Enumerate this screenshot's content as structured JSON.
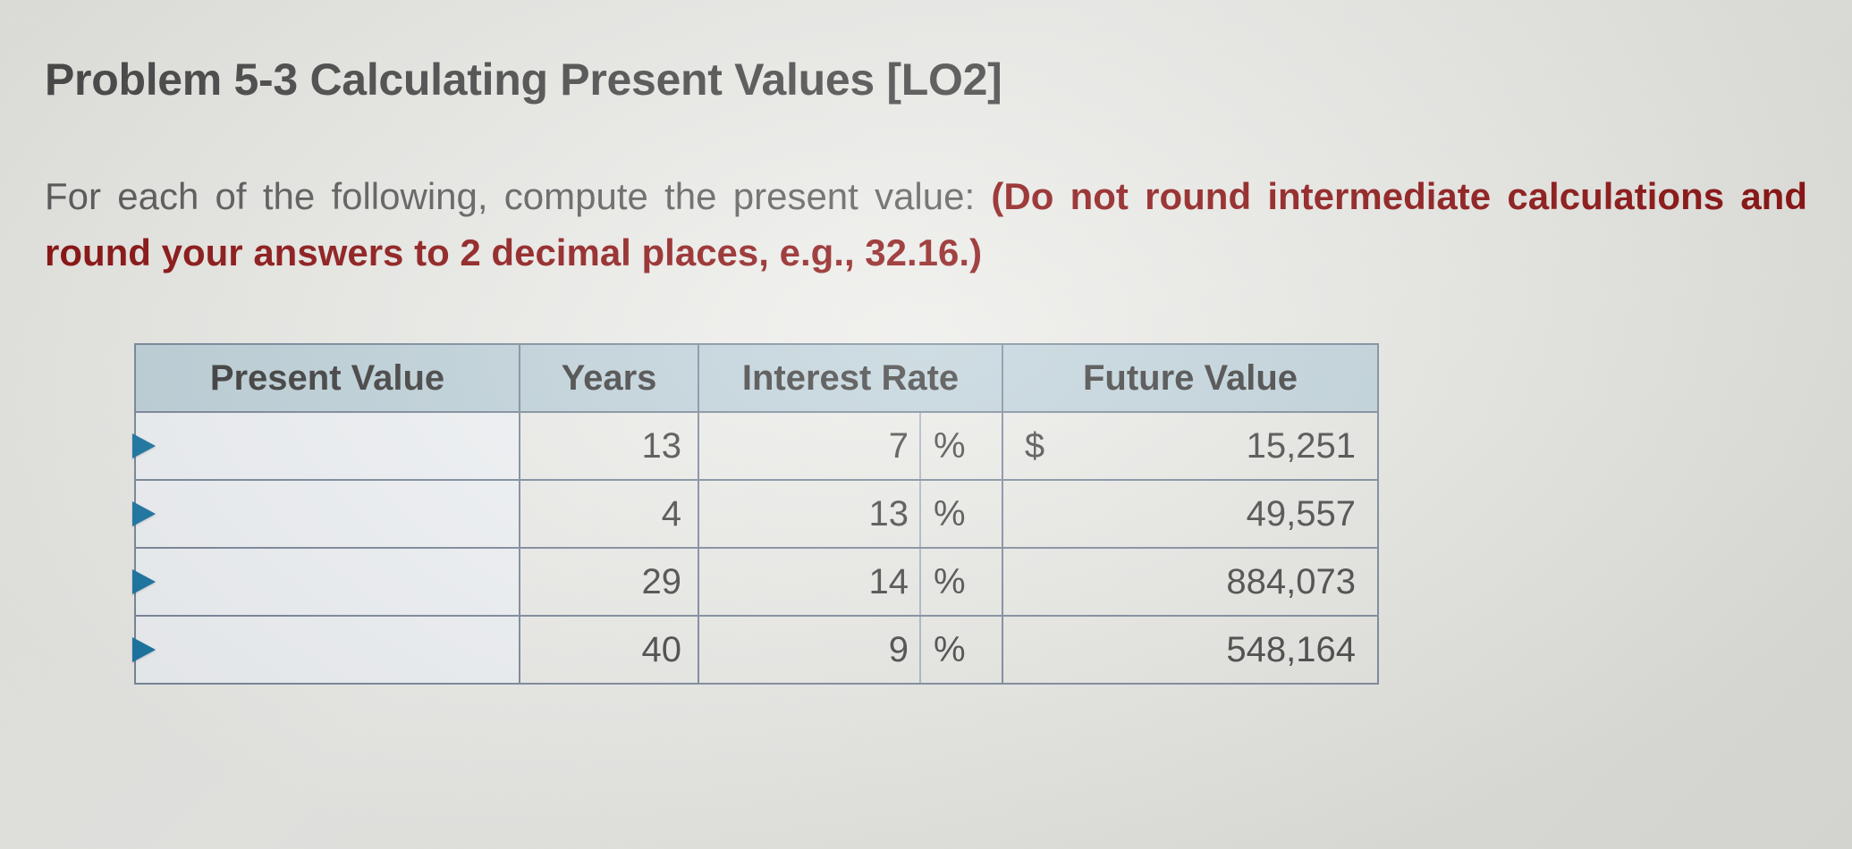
{
  "title": "Problem 5-3 Calculating Present Values [LO2]",
  "description_lead": "For each of the following, compute the present value: ",
  "description_bold": "(Do not round intermediate calculations and round your answers to 2 decimal places, e.g., 32.16.)",
  "table": {
    "headers": {
      "pv": "Present Value",
      "years": "Years",
      "rate": "Interest Rate",
      "fv": "Future Value"
    },
    "percent_symbol": "%",
    "currency_symbol": "$",
    "header_bg": "#bfd2da",
    "border_color": "#7a889a",
    "rows": [
      {
        "years": "13",
        "rate": "7",
        "fv": "15,251",
        "show_currency": true
      },
      {
        "years": "4",
        "rate": "13",
        "fv": "49,557",
        "show_currency": false
      },
      {
        "years": "29",
        "rate": "14",
        "fv": "884,073",
        "show_currency": false
      },
      {
        "years": "40",
        "rate": "9",
        "fv": "548,164",
        "show_currency": false
      }
    ]
  }
}
